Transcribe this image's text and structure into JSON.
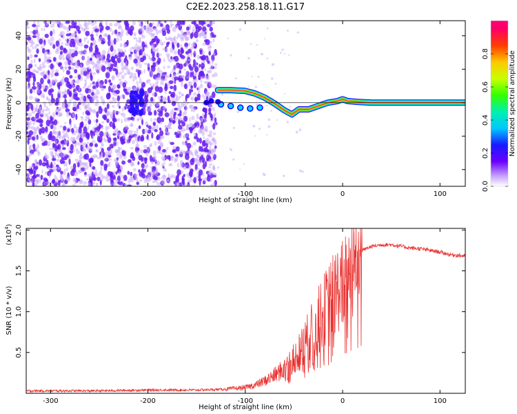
{
  "title": "C2E2.2023.258.18.11.G17",
  "chart_data": [
    {
      "type": "heatmap",
      "xlabel": "Height of straight line (km)",
      "ylabel": "Frequency (Hz)",
      "xlim": [
        -325,
        126
      ],
      "ylim": [
        -50,
        49
      ],
      "x_ticks": [
        -300,
        -200,
        -100,
        0,
        100
      ],
      "y_ticks": [
        -40,
        -20,
        0,
        20,
        40
      ],
      "colorbar": {
        "label": "Normalized spectral amplitude",
        "range": [
          0,
          1
        ],
        "ticks": [
          0.0,
          0.2,
          0.4,
          0.6,
          0.8
        ]
      },
      "signal_track": {
        "x": [
          -128,
          -115,
          -100,
          -90,
          -80,
          -70,
          -60,
          -52,
          -45,
          -35,
          -25,
          -15,
          -5,
          0,
          5,
          15,
          30,
          60,
          90,
          126
        ],
        "y": [
          7.5,
          7.5,
          7,
          5.5,
          3,
          -0.5,
          -4.5,
          -7,
          -4,
          -4,
          -2,
          0,
          1,
          2,
          1,
          0.5,
          0,
          0,
          0,
          0
        ]
      },
      "noise_region_x": [
        -325,
        -130
      ],
      "colors": {
        "noise": "#6a1ff0",
        "noise_light": "#c8a8f8",
        "signal_core": "#ff2f2f",
        "signal_edge": "#3de84a",
        "signal_outline": "#1a00ff"
      }
    },
    {
      "type": "line",
      "xlabel": "Height of straight line (km)",
      "ylabel": "SNR (10 * v/v)",
      "scale_note": "(x10",
      "scale_exp": "4",
      "scale_close": ")",
      "xlim": [
        -325,
        126
      ],
      "ylim": [
        0,
        2.02
      ],
      "x_ticks": [
        -300,
        -200,
        -100,
        0,
        100
      ],
      "y_ticks": [
        0.5,
        1.0,
        1.5,
        2.0
      ],
      "y_tick_labels": [
        "0.5",
        "1.0",
        "1.5",
        "2.0"
      ],
      "series": [
        {
          "color": "#e8312f",
          "x": [
            -325,
            -300,
            -250,
            -200,
            -150,
            -120,
            -100,
            -90,
            -80,
            -70,
            -60,
            -50,
            -40,
            -30,
            -20,
            -10,
            0,
            5,
            10,
            15,
            20,
            30,
            40,
            50,
            60,
            70,
            80,
            90,
            100,
            110,
            126
          ],
          "y": [
            0.03,
            0.03,
            0.03,
            0.04,
            0.04,
            0.05,
            0.07,
            0.1,
            0.15,
            0.22,
            0.3,
            0.42,
            0.6,
            0.8,
            1.0,
            1.2,
            1.35,
            1.5,
            1.6,
            1.7,
            1.75,
            1.8,
            1.82,
            1.82,
            1.8,
            1.78,
            1.77,
            1.75,
            1.73,
            1.7,
            1.68
          ]
        }
      ]
    }
  ]
}
